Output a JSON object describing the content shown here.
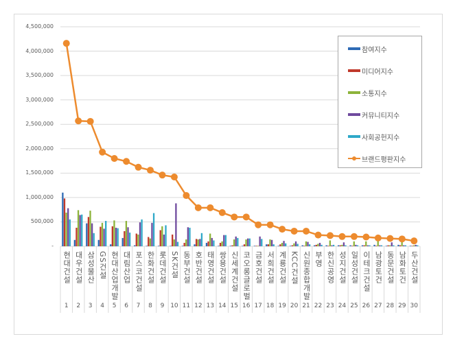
{
  "chart_data": {
    "type": "bar+line",
    "ylim": [
      0,
      4500000
    ],
    "yticks": [
      "-",
      "500,000",
      "1,000,000",
      "1,500,000",
      "2,000,000",
      "2,500,000",
      "3,000,000",
      "3,500,000",
      "4,000,000",
      "4,500,000"
    ],
    "grid": true,
    "legend_position": "top-right",
    "categories": [
      "현대건설",
      "대우건설",
      "삼성물산",
      "GS건설",
      "현대산업개발",
      "대림산업",
      "포스코건설",
      "한화건설",
      "롯데건설",
      "SK건설",
      "동부건설",
      "호반건설",
      "태영건설",
      "쌍용건설",
      "신세계건설",
      "코오롱글로벌",
      "금호건설",
      "서희건설",
      "계룡건설",
      "KCC건설",
      "신원종합개발",
      "부영",
      "한신공영",
      "성지건설",
      "일성건설",
      "이테크건설",
      "남광토건",
      "동문건설",
      "남화토건",
      "두산건설"
    ],
    "ranks": [
      "1",
      "2",
      "3",
      "4",
      "5",
      "6",
      "7",
      "8",
      "9",
      "10",
      "11",
      "12",
      "13",
      "14",
      "15",
      "16",
      "17",
      "18",
      "19",
      "20",
      "21",
      "22",
      "23",
      "24",
      "25",
      "26",
      "27",
      "28",
      "29",
      "30"
    ],
    "series": [
      {
        "name": "참여지수",
        "type": "bar",
        "color": "#2e6bb5",
        "values": [
          1100000,
          130000,
          470000,
          130000,
          40000,
          170000,
          20000,
          10000,
          10000,
          10000,
          10000,
          40000,
          70000,
          10000,
          10000,
          10000,
          10000,
          40000,
          10000,
          10000,
          20000,
          20000,
          20000,
          20000,
          20000,
          20000,
          30000,
          10000,
          30000,
          10000
        ]
      },
      {
        "name": "미디어지수",
        "type": "bar",
        "color": "#c0392b",
        "values": [
          980000,
          380000,
          600000,
          400000,
          410000,
          310000,
          260000,
          190000,
          330000,
          240000,
          70000,
          150000,
          100000,
          70000,
          20000,
          40000,
          10000,
          40000,
          40000,
          20000,
          10000,
          30000,
          10000,
          20000,
          10000,
          20000,
          10000,
          20000,
          20000,
          10000
        ]
      },
      {
        "name": "소통지수",
        "type": "bar",
        "color": "#8db33a",
        "values": [
          690000,
          740000,
          730000,
          480000,
          530000,
          520000,
          240000,
          160000,
          410000,
          140000,
          140000,
          140000,
          260000,
          100000,
          140000,
          140000,
          10000,
          140000,
          70000,
          60000,
          100000,
          50000,
          120000,
          30000,
          100000,
          100000,
          120000,
          20000,
          100000,
          20000
        ]
      },
      {
        "name": "커뮤니티지수",
        "type": "bar",
        "color": "#6f4a9e",
        "values": [
          780000,
          640000,
          470000,
          360000,
          380000,
          390000,
          490000,
          480000,
          240000,
          880000,
          390000,
          150000,
          170000,
          230000,
          200000,
          160000,
          200000,
          130000,
          110000,
          100000,
          90000,
          70000,
          20000,
          80000,
          30000,
          20000,
          20000,
          80000,
          20000,
          30000
        ]
      },
      {
        "name": "사회공헌지수",
        "type": "bar",
        "color": "#2ea8c8",
        "values": [
          550000,
          650000,
          270000,
          520000,
          370000,
          280000,
          550000,
          680000,
          430000,
          90000,
          380000,
          270000,
          120000,
          230000,
          170000,
          160000,
          150000,
          40000,
          60000,
          50000,
          40000,
          30000,
          30000,
          20000,
          20000,
          20000,
          20000,
          20000,
          20000,
          20000
        ]
      },
      {
        "name": "브랜드평판지수",
        "type": "line",
        "color": "#ed8b2e",
        "values": [
          4160000,
          2570000,
          2560000,
          1930000,
          1800000,
          1740000,
          1620000,
          1560000,
          1460000,
          1420000,
          1040000,
          790000,
          790000,
          690000,
          600000,
          600000,
          440000,
          440000,
          350000,
          310000,
          310000,
          230000,
          220000,
          200000,
          200000,
          190000,
          170000,
          160000,
          150000,
          110000
        ]
      }
    ]
  }
}
